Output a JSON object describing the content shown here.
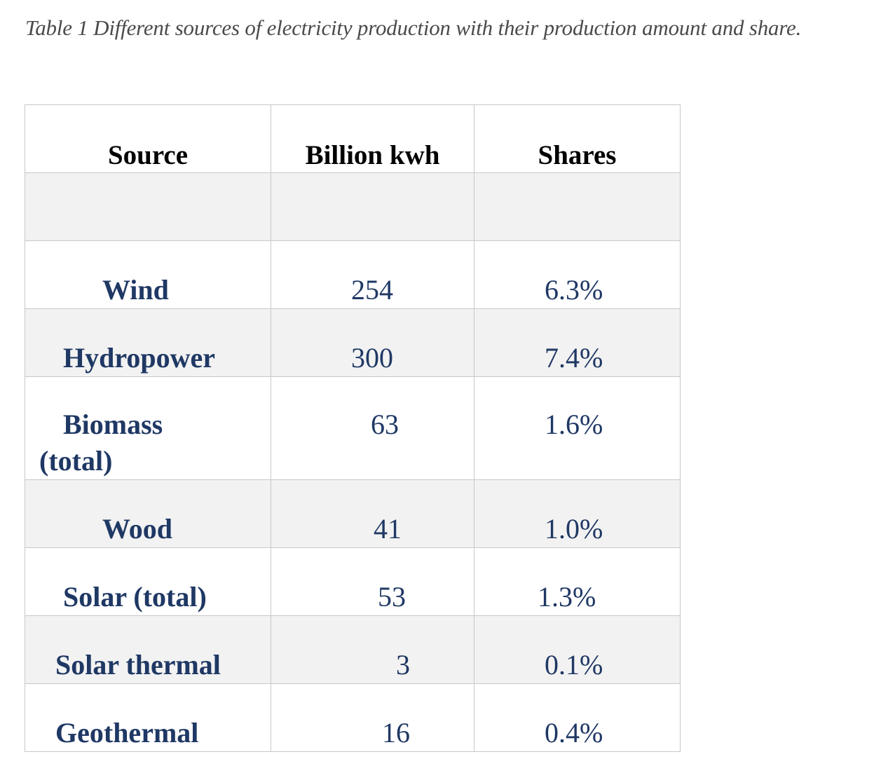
{
  "caption": "Table 1 Different sources of electricity production with their production amount and share.",
  "table": {
    "headers": [
      "Source",
      "Billion kwh",
      "Shares"
    ],
    "rows": [
      {
        "source": "",
        "value": "",
        "share": ""
      },
      {
        "source": "Wind",
        "value": "254",
        "share": "6.3%"
      },
      {
        "source": "Hydropower",
        "value": "300",
        "share": "7.4%"
      },
      {
        "source": "Biomass",
        "source_line2": "(total)",
        "value": "63",
        "share": "1.6%"
      },
      {
        "source": "Wood",
        "value": "41",
        "share": "1.0%"
      },
      {
        "source": "Solar (total)",
        "value": "53",
        "share": "1.3%"
      },
      {
        "source": "Solar thermal",
        "value": "3",
        "share": "0.1%"
      },
      {
        "source": "Geothermal",
        "value": "16",
        "share": "0.4%"
      }
    ]
  },
  "colors": {
    "header_text": "#000000",
    "body_text": "#1f3864",
    "caption_text": "#4a4a4a",
    "shaded_row": "#f2f2f2",
    "border": "#c8c8c8"
  }
}
